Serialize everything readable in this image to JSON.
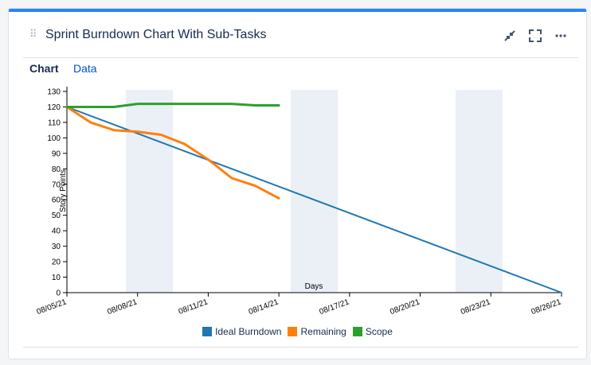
{
  "gadget": {
    "title": "Sprint Burndown Chart With Sub-Tasks",
    "drag_glyph": "⠿",
    "icons": {
      "minimize": "minimize-icon",
      "fullscreen": "fullscreen-icon",
      "more": "more-icon"
    }
  },
  "tabs": [
    {
      "label": "Chart",
      "active": true
    },
    {
      "label": "Data",
      "active": false
    }
  ],
  "chart_data": {
    "type": "line",
    "xlabel": "Days",
    "ylabel": "Story Points",
    "ylim": [
      0,
      130
    ],
    "yticks": [
      0,
      10,
      20,
      30,
      40,
      50,
      60,
      70,
      80,
      90,
      100,
      110,
      120,
      130
    ],
    "xlim": [
      "2021-08-05",
      "2021-08-26"
    ],
    "xticks": [
      "08/05/21",
      "08/08/21",
      "08/11/21",
      "08/14/21",
      "08/17/21",
      "08/20/21",
      "08/23/21",
      "08/26/21"
    ],
    "weekends": [
      [
        "2021-08-07.5",
        "2021-08-09.5"
      ],
      [
        "2021-08-14.5",
        "2021-08-16.5"
      ],
      [
        "2021-08-21.5",
        "2021-08-23.5"
      ]
    ],
    "series": [
      {
        "name": "Ideal Burndown",
        "color": "#1f77b4",
        "points": [
          [
            "2021-08-05",
            120
          ],
          [
            "2021-08-26",
            0
          ]
        ]
      },
      {
        "name": "Remaining",
        "color": "#ff7f0e",
        "points": [
          [
            "2021-08-05",
            120
          ],
          [
            "2021-08-06",
            110
          ],
          [
            "2021-08-07",
            105
          ],
          [
            "2021-08-08",
            104
          ],
          [
            "2021-08-09",
            102
          ],
          [
            "2021-08-10",
            96
          ],
          [
            "2021-08-11",
            86
          ],
          [
            "2021-08-12",
            74
          ],
          [
            "2021-08-13",
            69
          ],
          [
            "2021-08-14",
            61
          ]
        ]
      },
      {
        "name": "Scope",
        "color": "#2ca02c",
        "points": [
          [
            "2021-08-05",
            120
          ],
          [
            "2021-08-07",
            120
          ],
          [
            "2021-08-08",
            122
          ],
          [
            "2021-08-12",
            122
          ],
          [
            "2021-08-13",
            121
          ],
          [
            "2021-08-14",
            121
          ]
        ]
      }
    ]
  }
}
